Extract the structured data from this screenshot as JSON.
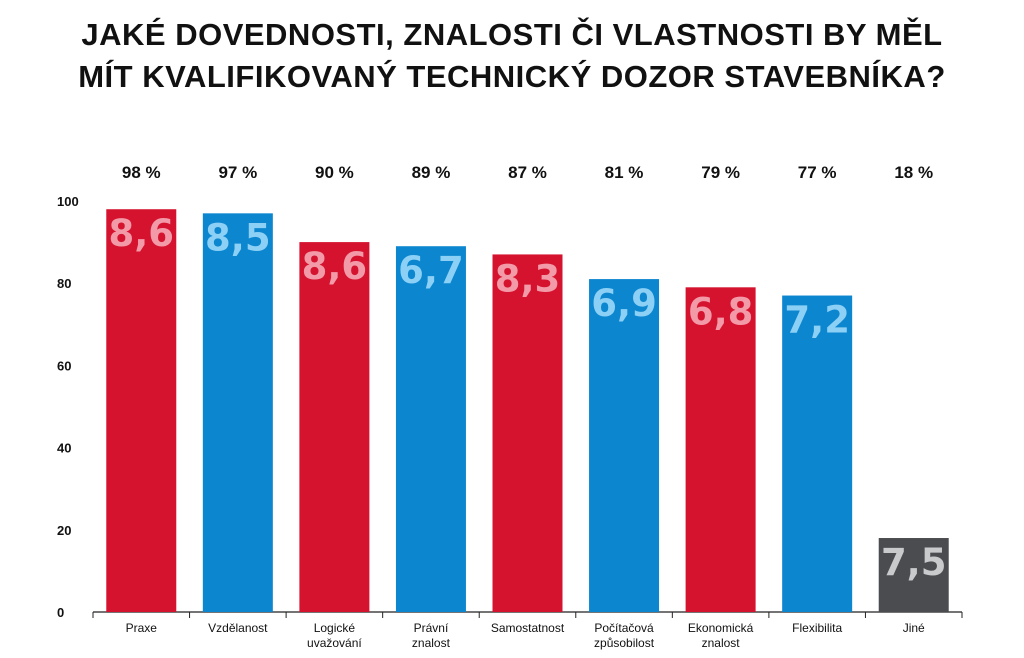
{
  "title": {
    "line1": "JAKÉ DOVEDNOSTI, ZNALOSTI ČI VLASTNOSTI BY MĚL",
    "line2": "MÍT KVALIFIKOVANÝ TECHNICKÝ DOZOR STAVEBNÍKA?"
  },
  "chart_data": {
    "type": "bar",
    "title": "JAKÉ DOVEDNOSTI, ZNALOSTI ČI VLASTNOSTI BY MĚL MÍT KVALIFIKOVANÝ TECHNICKÝ DOZOR STAVEBNÍKA?",
    "xlabel": "",
    "ylabel": "",
    "ylim": [
      0,
      100
    ],
    "yticks": [
      "0",
      "20",
      "40",
      "60",
      "80",
      "100"
    ],
    "grid": false,
    "colors": {
      "red": "#d5132f",
      "blue": "#0b86cf",
      "gray": "#4a4c50",
      "red_label": "#f29aa8",
      "blue_label": "#8cd0f5",
      "gray_label": "#c9cacc"
    },
    "bars": [
      {
        "category": [
          "Praxe"
        ],
        "value": 98,
        "percent_label": "98 %",
        "score_label": "8,6",
        "color": "red"
      },
      {
        "category": [
          "Vzdělanost"
        ],
        "value": 97,
        "percent_label": "97 %",
        "score_label": "8,5",
        "color": "blue"
      },
      {
        "category": [
          "Logické",
          "uvažování"
        ],
        "value": 90,
        "percent_label": "90 %",
        "score_label": "8,6",
        "color": "red"
      },
      {
        "category": [
          "Právní",
          "znalost"
        ],
        "value": 89,
        "percent_label": "89 %",
        "score_label": "6,7",
        "color": "blue"
      },
      {
        "category": [
          "Samostatnost"
        ],
        "value": 87,
        "percent_label": "87 %",
        "score_label": "8,3",
        "color": "red"
      },
      {
        "category": [
          "Počítačová",
          "způsobilost"
        ],
        "value": 81,
        "percent_label": "81 %",
        "score_label": "6,9",
        "color": "blue"
      },
      {
        "category": [
          "Ekonomická",
          "znalost"
        ],
        "value": 79,
        "percent_label": "79 %",
        "score_label": "6,8",
        "color": "red"
      },
      {
        "category": [
          "Flexibilita"
        ],
        "value": 77,
        "percent_label": "77 %",
        "score_label": "7,2",
        "color": "blue"
      },
      {
        "category": [
          "Jiné"
        ],
        "value": 18,
        "percent_label": "18 %",
        "score_label": "7,5",
        "color": "gray"
      }
    ]
  }
}
